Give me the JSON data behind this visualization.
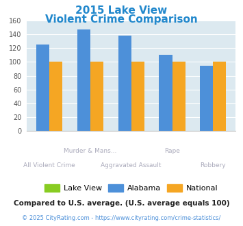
{
  "title_line1": "2015 Lake View",
  "title_line2": "Violent Crime Comparison",
  "title_color": "#2288cc",
  "alabama": [
    125,
    147,
    138,
    110,
    94
  ],
  "national": [
    100,
    100,
    100,
    100,
    100
  ],
  "lakeview_color": "#88cc22",
  "alabama_color": "#4d90d9",
  "national_color": "#f5a623",
  "ylim": [
    0,
    160
  ],
  "yticks": [
    0,
    20,
    40,
    60,
    80,
    100,
    120,
    140,
    160
  ],
  "bg_color": "#dce9f0",
  "legend_labels": [
    "Lake View",
    "Alabama",
    "National"
  ],
  "footnote1": "Compared to U.S. average. (U.S. average equals 100)",
  "footnote2": "© 2025 CityRating.com - https://www.cityrating.com/crime-statistics/",
  "footnote1_color": "#222222",
  "footnote2_color": "#4d90d9",
  "xtick_color": "#aaaabb",
  "row1_labels": [
    "",
    "Murder & Mans...",
    "",
    "Rape",
    ""
  ],
  "row2_labels": [
    "All Violent Crime",
    "",
    "Aggravated Assault",
    "",
    "Robbery"
  ]
}
